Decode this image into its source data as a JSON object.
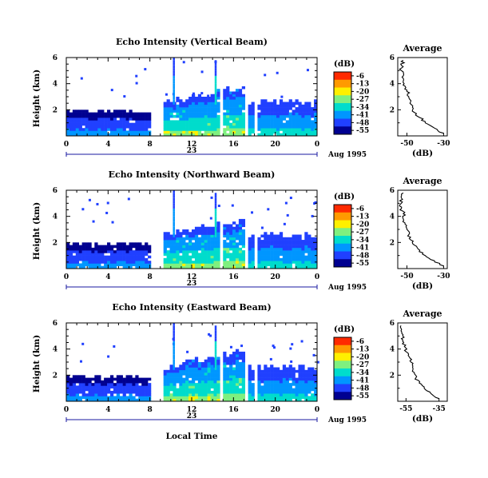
{
  "figure": {
    "xlabel": "Local Time",
    "day_label": "23",
    "date_label": "Aug 1995"
  },
  "chart_data": [
    {
      "type": "heatmap",
      "title": "Echo Intensity (Vertical Beam)",
      "ylabel": "Height (km)",
      "xlabel": "",
      "xlim": [
        0,
        24
      ],
      "ylim": [
        0,
        6
      ],
      "xticks": [
        "0",
        "4",
        "8",
        "12",
        "16",
        "20",
        "0"
      ],
      "yticks": [
        "2",
        "4",
        "6"
      ],
      "colorbar": {
        "unit": "(dB)",
        "levels": [
          "-6",
          "-13",
          "-20",
          "-27",
          "-34",
          "-41",
          "-48",
          "-55"
        ],
        "colors": [
          "#ff2a00",
          "#ff9a00",
          "#fff000",
          "#7ff07f",
          "#00dccc",
          "#0096ff",
          "#2040ff",
          "#000090"
        ]
      },
      "profile": {
        "title": "Average",
        "xlabel": "(dB)",
        "xticks": [
          "-50",
          "-30"
        ],
        "yticks": [
          "2",
          "4",
          "6"
        ],
        "xlim": [
          -55,
          -28
        ],
        "ylim": [
          0,
          6
        ],
        "heights": [
          0.2,
          0.6,
          1.0,
          1.4,
          1.8,
          2.2,
          2.6,
          3.0,
          3.4,
          3.8,
          4.2,
          4.6,
          5.0,
          5.4,
          5.8
        ],
        "values": [
          -30,
          -35,
          -40,
          -43,
          -46,
          -47,
          -48,
          -49,
          -50,
          -51,
          -52,
          -52,
          -53,
          -53,
          -52
        ]
      }
    },
    {
      "type": "heatmap",
      "title": "Echo Intensity (Northward Beam)",
      "ylabel": "Height (km)",
      "xlabel": "",
      "xlim": [
        0,
        24
      ],
      "ylim": [
        0,
        6
      ],
      "xticks": [
        "0",
        "4",
        "8",
        "12",
        "16",
        "20",
        "0"
      ],
      "yticks": [
        "2",
        "4",
        "6"
      ],
      "colorbar": {
        "unit": "(dB)",
        "levels": [
          "-6",
          "-13",
          "-20",
          "-27",
          "-34",
          "-41",
          "-48",
          "-55"
        ],
        "colors": [
          "#ff2a00",
          "#ff9a00",
          "#fff000",
          "#7ff07f",
          "#00dccc",
          "#0096ff",
          "#2040ff",
          "#000090"
        ]
      },
      "profile": {
        "title": "Average",
        "xlabel": "(dB)",
        "xticks": [
          "-50",
          "-30"
        ],
        "yticks": [
          "2",
          "4",
          "6"
        ],
        "xlim": [
          -55,
          -28
        ],
        "ylim": [
          0,
          6
        ],
        "heights": [
          0.2,
          0.6,
          1.0,
          1.4,
          1.8,
          2.2,
          2.6,
          3.0,
          3.4,
          3.8,
          4.2,
          4.6,
          5.0,
          5.4,
          5.8
        ],
        "values": [
          -30,
          -35,
          -40,
          -43,
          -46,
          -48,
          -49,
          -50,
          -51,
          -52,
          -52,
          -53,
          -53,
          -53,
          -52
        ]
      }
    },
    {
      "type": "heatmap",
      "title": "Echo Intensity (Eastward Beam)",
      "ylabel": "Height (km)",
      "xlabel": "Local Time",
      "xlim": [
        0,
        24
      ],
      "ylim": [
        0,
        6
      ],
      "xticks": [
        "0",
        "4",
        "8",
        "12",
        "16",
        "20",
        "0"
      ],
      "yticks": [
        "2",
        "4",
        "6"
      ],
      "colorbar": {
        "unit": "(dB)",
        "levels": [
          "-6",
          "-13",
          "-20",
          "-27",
          "-34",
          "-41",
          "-48",
          "-55"
        ],
        "colors": [
          "#ff2a00",
          "#ff9a00",
          "#fff000",
          "#7ff07f",
          "#00dccc",
          "#0096ff",
          "#2040ff",
          "#000090"
        ]
      },
      "profile": {
        "title": "Average",
        "xlabel": "(dB)",
        "xticks": [
          "-55",
          "-35"
        ],
        "yticks": [
          "2",
          "4",
          "6"
        ],
        "xlim": [
          -60,
          -30
        ],
        "ylim": [
          0,
          6
        ],
        "heights": [
          0.2,
          0.6,
          1.0,
          1.4,
          1.8,
          2.2,
          2.6,
          3.0,
          3.4,
          3.8,
          4.2,
          4.6,
          5.0,
          5.4,
          5.8
        ],
        "values": [
          -35,
          -40,
          -44,
          -47,
          -49,
          -50,
          -51,
          -52,
          -53,
          -55,
          -56,
          -57,
          -57,
          -58,
          -58
        ]
      }
    }
  ]
}
